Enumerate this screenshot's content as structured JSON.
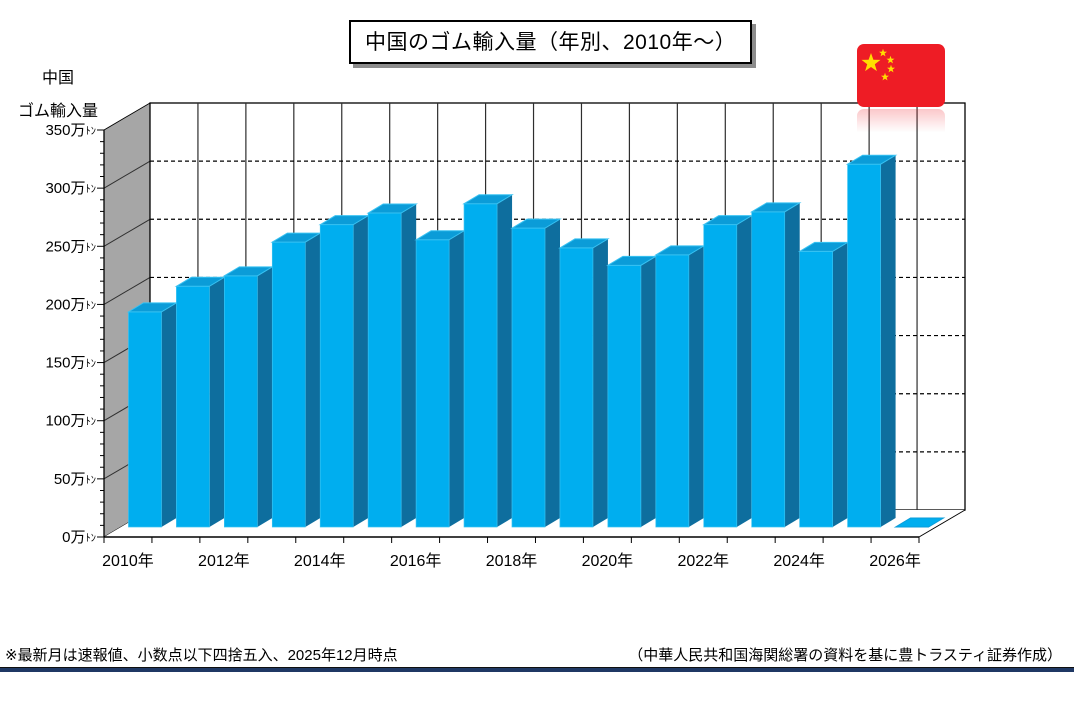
{
  "title": "中国のゴム輸入量（年別、2010年～）",
  "axis": {
    "title_lines": [
      "中国",
      "ゴム輸入量"
    ],
    "y_tick_labels": [
      "0万ﾄﾝ",
      "50万ﾄﾝ",
      "100万ﾄﾝ",
      "150万ﾄﾝ",
      "200万ﾄﾝ",
      "250万ﾄﾝ",
      "300万ﾄﾝ",
      "350万ﾄﾝ"
    ],
    "x_tick_labels": [
      "2010年",
      "2012年",
      "2014年",
      "2016年",
      "2018年",
      "2020年",
      "2022年",
      "2024年",
      "2026年"
    ]
  },
  "chart_data": {
    "type": "bar",
    "subtype": "3d-column",
    "title": "中国のゴム輸入量（年別、2010年～）",
    "unit": "万トン",
    "categories": [
      "2010",
      "2011",
      "2012",
      "2013",
      "2014",
      "2015",
      "2016",
      "2017",
      "2018",
      "2019",
      "2020",
      "2021",
      "2022",
      "2023",
      "2024",
      "2025",
      "2026"
    ],
    "values": [
      185,
      207,
      216,
      245,
      260,
      270,
      247,
      278,
      257,
      240,
      225,
      234,
      260,
      271,
      237,
      312,
      0
    ],
    "ylim": [
      0,
      350
    ],
    "y_major_step": 50,
    "y_minor_step": 10,
    "grid": "dashed-horizontal-on-back-wall",
    "legend": "none",
    "bar_colors": {
      "front": "#00AEEF",
      "top": "#0B9CD8",
      "side": "#0E6E9E",
      "edge": "#38C2F2"
    },
    "wall_color": "#A6A6A6",
    "gridline_color": "#2e2e2e"
  },
  "flag": {
    "country": "china",
    "red": "#EE1C25",
    "yellow": "#FFDE00"
  },
  "footer": {
    "left": "※最新月は速報値、小数点以下四捨五入、2025年12月時点",
    "right": "（中華人民共和国海関総署の資料を基に豊トラスティ証券作成）",
    "line_color": "#1F3864"
  }
}
